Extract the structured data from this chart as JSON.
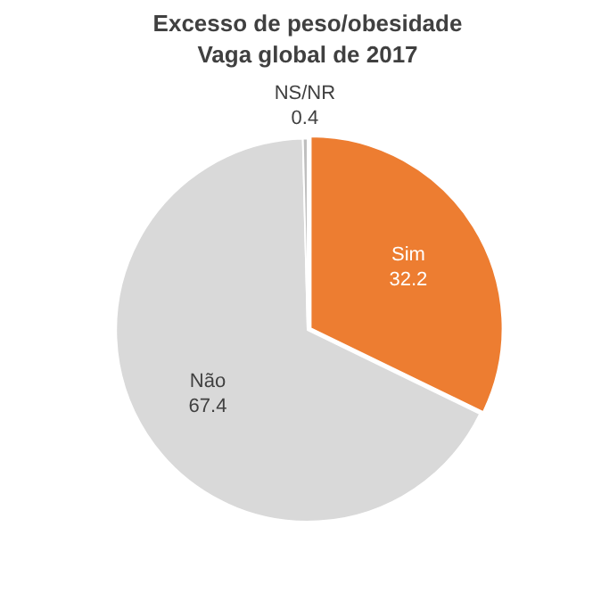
{
  "chart_data": {
    "type": "pie",
    "title": "Excesso de peso/obesidade",
    "subtitle": "Vaga global de 2017",
    "categories": [
      "Sim",
      "Não",
      "NS/NR"
    ],
    "values": [
      32.2,
      67.4,
      0.4
    ],
    "colors": [
      "#ed7d31",
      "#d9d9d9",
      "#bfbfbf"
    ],
    "data_labels": true,
    "legend": false
  }
}
